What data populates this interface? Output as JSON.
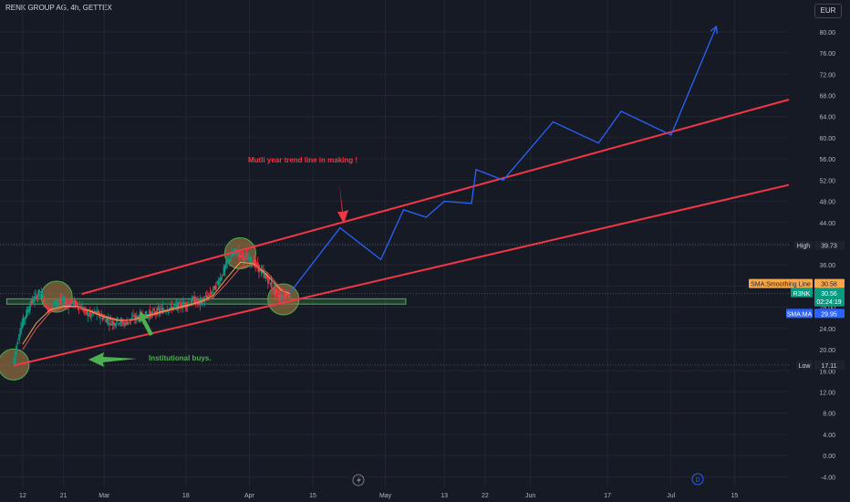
{
  "header": {
    "symbol_title": "RENK GROUP AG, 4h, GETTEX",
    "currency": "EUR"
  },
  "annotations": {
    "trend_note": "Mutli year trend line in making !",
    "buy_note": "Institutional buys."
  },
  "price_labels": {
    "high": {
      "name": "High",
      "value": "39.73"
    },
    "sma_smoothing": {
      "name": "SMA:Smoothing Line",
      "value": "30.58"
    },
    "symbol": {
      "name": "R3NK",
      "value": "30.56",
      "countdown": "02:24:19"
    },
    "sma_ma": {
      "name": "SMA:MA",
      "value": "29.95"
    },
    "low": {
      "name": "Low",
      "value": "17.11"
    }
  },
  "event_markers": {
    "dividend": "D"
  },
  "colors": {
    "background": "#161a25",
    "trend_lines": "#f23645",
    "projection": "#2962ff",
    "support_zone": "#4caf50",
    "candle_up": "#089981",
    "candle_down": "#f23645",
    "circle_fill": "#8d6e3f",
    "arrow_green": "#4caf50"
  },
  "chart_data": {
    "type": "candlestick",
    "title": "RENK GROUP AG, 4h, GETTEX",
    "x_axis": {
      "ticks": [
        {
          "label": "12",
          "x": 2
        },
        {
          "label": "21",
          "x": 11
        },
        {
          "label": "Mar",
          "x": 20
        },
        {
          "label": "18",
          "x": 38
        },
        {
          "label": "Apr",
          "x": 52
        },
        {
          "label": "15",
          "x": 66
        },
        {
          "label": "May",
          "x": 82
        },
        {
          "label": "13",
          "x": 95
        },
        {
          "label": "22",
          "x": 104
        },
        {
          "label": "Jun",
          "x": 114
        },
        {
          "label": "17",
          "x": 131
        },
        {
          "label": "Jul",
          "x": 145
        },
        {
          "label": "15",
          "x": 159
        }
      ],
      "range": [
        -3,
        171
      ]
    },
    "y_axis": {
      "ticks": [
        "-4.00",
        "0.00",
        "4.00",
        "8.00",
        "12.00",
        "16.00",
        "20.00",
        "24.00",
        "28.00",
        "32.00",
        "36.00",
        "40.00",
        "44.00",
        "48.00",
        "52.00",
        "56.00",
        "60.00",
        "64.00",
        "68.00",
        "72.00",
        "76.00",
        "80.00"
      ],
      "range": [
        -6,
        86
      ]
    },
    "price_path": [
      [
        0,
        17.2
      ],
      [
        1,
        22
      ],
      [
        2,
        25
      ],
      [
        3,
        27
      ],
      [
        4,
        29
      ],
      [
        5,
        30
      ],
      [
        6,
        31
      ],
      [
        7,
        29
      ],
      [
        8,
        27.5
      ],
      [
        9,
        28.5
      ],
      [
        10,
        29.5
      ],
      [
        11,
        29
      ],
      [
        12,
        28.5
      ],
      [
        13,
        29
      ],
      [
        14,
        28.5
      ],
      [
        15,
        28
      ],
      [
        16,
        27
      ],
      [
        17,
        26.5
      ],
      [
        18,
        27
      ],
      [
        19,
        26.5
      ],
      [
        20,
        26
      ],
      [
        21,
        25.5
      ],
      [
        22,
        25
      ],
      [
        23,
        25.5
      ],
      [
        24,
        25
      ],
      [
        25,
        25.2
      ],
      [
        26,
        25.8
      ],
      [
        27,
        26
      ],
      [
        28,
        26.3
      ],
      [
        29,
        26.5
      ],
      [
        30,
        26.7
      ],
      [
        31,
        27
      ],
      [
        32,
        27.3
      ],
      [
        33,
        27.5
      ],
      [
        34,
        27.8
      ],
      [
        35,
        28
      ],
      [
        36,
        28.2
      ],
      [
        37,
        28.4
      ],
      [
        38,
        28.6
      ],
      [
        39,
        29
      ],
      [
        40,
        29.5
      ],
      [
        41,
        28.8
      ],
      [
        42,
        29.5
      ],
      [
        43,
        30
      ],
      [
        44,
        31
      ],
      [
        45,
        32.5
      ],
      [
        46,
        34
      ],
      [
        47,
        36
      ],
      [
        48,
        37.5
      ],
      [
        49,
        38.5
      ],
      [
        50,
        38
      ],
      [
        51,
        37.5
      ],
      [
        52,
        37
      ],
      [
        53,
        36.5
      ],
      [
        54,
        35.5
      ],
      [
        55,
        34.5
      ],
      [
        56,
        33.5
      ],
      [
        57,
        32
      ],
      [
        58,
        30.5
      ],
      [
        59,
        30
      ],
      [
        60,
        30.4
      ],
      [
        61,
        30.56
      ]
    ],
    "sma_smoothing_line": [
      [
        2,
        21
      ],
      [
        5,
        25
      ],
      [
        8,
        27.5
      ],
      [
        11,
        28.2
      ],
      [
        14,
        28.2
      ],
      [
        17,
        27.2
      ],
      [
        20,
        26.2
      ],
      [
        23,
        25.5
      ],
      [
        26,
        25.6
      ],
      [
        29,
        26.3
      ],
      [
        32,
        27
      ],
      [
        35,
        27.7
      ],
      [
        38,
        28.3
      ],
      [
        41,
        29
      ],
      [
        44,
        30.2
      ],
      [
        47,
        33.5
      ],
      [
        50,
        36.5
      ],
      [
        53,
        36.2
      ],
      [
        56,
        34
      ],
      [
        59,
        31.2
      ],
      [
        61,
        30.58
      ]
    ],
    "sma_ma_line": [
      [
        2,
        20
      ],
      [
        5,
        24
      ],
      [
        8,
        27
      ],
      [
        11,
        28
      ],
      [
        14,
        28.1
      ],
      [
        17,
        27.4
      ],
      [
        20,
        26.4
      ],
      [
        23,
        25.7
      ],
      [
        26,
        25.5
      ],
      [
        29,
        26.1
      ],
      [
        32,
        26.8
      ],
      [
        35,
        27.5
      ],
      [
        38,
        28.1
      ],
      [
        41,
        28.8
      ],
      [
        44,
        29.8
      ],
      [
        47,
        32.5
      ],
      [
        50,
        35.5
      ],
      [
        53,
        36
      ],
      [
        56,
        34.5
      ],
      [
        59,
        31.5
      ],
      [
        61,
        29.95
      ]
    ],
    "trend_lines": [
      {
        "name": "upper",
        "points": [
          [
            15,
            30.5
          ],
          [
            171,
            67.2
          ]
        ]
      },
      {
        "name": "lower",
        "points": [
          [
            0,
            17
          ],
          [
            171,
            51.1
          ]
        ]
      }
    ],
    "support_zone": {
      "x_range": [
        -1.5,
        86.5
      ],
      "y_range": [
        28.6,
        29.6
      ]
    },
    "projection_path": [
      [
        61,
        30.8
      ],
      [
        72,
        43
      ],
      [
        81,
        37
      ],
      [
        86,
        46.4
      ],
      [
        91,
        45
      ],
      [
        95,
        48
      ],
      [
        101,
        47.6
      ],
      [
        102,
        54
      ],
      [
        108,
        52
      ],
      [
        119,
        63
      ],
      [
        129,
        59
      ],
      [
        134,
        65
      ],
      [
        145,
        60.5
      ],
      [
        155,
        81
      ]
    ],
    "highlight_circles": [
      {
        "x": 0,
        "y": 17.2
      },
      {
        "x": 9.5,
        "y": 30
      },
      {
        "x": 50,
        "y": 38.2
      },
      {
        "x": 59.5,
        "y": 29.5
      }
    ],
    "reference_lines": [
      39.73,
      30.58,
      17.11
    ],
    "last_price": 30.56
  }
}
